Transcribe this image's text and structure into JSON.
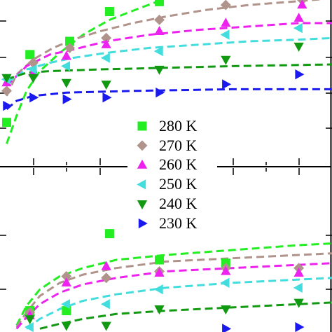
{
  "chart_data": [
    {
      "type": "scatter",
      "panel": "top",
      "title": "",
      "xlabel": "",
      "ylabel": "",
      "xlim": [
        0,
        1
      ],
      "ylim": [
        0,
        1
      ],
      "grid": false,
      "legend_placement": "center",
      "series": [
        {
          "name": "280 K",
          "color": "#22ee22",
          "marker": "square",
          "points": [
            [
              0.02,
              0.26
            ],
            [
              0.09,
              0.67
            ],
            [
              0.21,
              0.75
            ],
            [
              0.33,
              0.93
            ],
            [
              0.48,
              0.99
            ]
          ],
          "fit": [
            [
              0.02,
              0.13
            ],
            [
              0.05,
              0.3
            ],
            [
              0.08,
              0.45
            ],
            [
              0.12,
              0.57
            ],
            [
              0.18,
              0.68
            ],
            [
              0.25,
              0.79
            ],
            [
              0.33,
              0.88
            ],
            [
              0.42,
              0.95
            ],
            [
              0.5,
              1.01
            ]
          ]
        },
        {
          "name": "270 K",
          "color": "#b0948c",
          "marker": "diamond",
          "points": [
            [
              0.02,
              0.45
            ],
            [
              0.1,
              0.62
            ],
            [
              0.21,
              0.71
            ],
            [
              0.32,
              0.77
            ],
            [
              0.48,
              0.88
            ],
            [
              0.68,
              0.97
            ],
            [
              0.91,
              1.0
            ]
          ],
          "fit": [
            [
              0.02,
              0.42
            ],
            [
              0.05,
              0.55
            ],
            [
              0.1,
              0.64
            ],
            [
              0.16,
              0.71
            ],
            [
              0.22,
              0.76
            ],
            [
              0.3,
              0.81
            ],
            [
              0.4,
              0.86
            ],
            [
              0.5,
              0.9
            ],
            [
              0.62,
              0.94
            ],
            [
              0.75,
              0.97
            ],
            [
              0.88,
              0.99
            ],
            [
              1.0,
              1.01
            ]
          ]
        },
        {
          "name": "260 K",
          "color": "#ee22ee",
          "marker": "triangle-up",
          "points": [
            [
              0.02,
              0.5
            ],
            [
              0.1,
              0.56
            ],
            [
              0.2,
              0.66
            ],
            [
              0.32,
              0.73
            ],
            [
              0.48,
              0.81
            ],
            [
              0.68,
              0.86
            ],
            [
              0.9,
              0.89
            ],
            [
              0.91,
              0.97
            ]
          ],
          "fit": [
            [
              0.02,
              0.48
            ],
            [
              0.08,
              0.6
            ],
            [
              0.15,
              0.67
            ],
            [
              0.22,
              0.7
            ],
            [
              0.32,
              0.75
            ],
            [
              0.45,
              0.79
            ],
            [
              0.6,
              0.82
            ],
            [
              0.75,
              0.84
            ],
            [
              0.9,
              0.86
            ],
            [
              1.0,
              0.86
            ]
          ]
        },
        {
          "name": "250 K",
          "color": "#44dddd",
          "marker": "triangle-left",
          "points": [
            [
              0.02,
              0.52
            ],
            [
              0.1,
              0.58
            ],
            [
              0.2,
              0.6
            ],
            [
              0.32,
              0.65
            ],
            [
              0.48,
              0.69
            ],
            [
              0.68,
              0.79
            ],
            [
              0.9,
              0.83
            ]
          ],
          "fit": [
            [
              0.02,
              0.5
            ],
            [
              0.08,
              0.58
            ],
            [
              0.15,
              0.62
            ],
            [
              0.22,
              0.65
            ],
            [
              0.32,
              0.68
            ],
            [
              0.45,
              0.71
            ],
            [
              0.6,
              0.73
            ],
            [
              0.75,
              0.75
            ],
            [
              0.9,
              0.76
            ],
            [
              1.0,
              0.77
            ]
          ]
        },
        {
          "name": "240 K",
          "color": "#119911",
          "marker": "triangle-down",
          "points": [
            [
              0.02,
              0.53
            ],
            [
              0.1,
              0.53
            ],
            [
              0.2,
              0.5
            ],
            [
              0.32,
              0.49
            ],
            [
              0.48,
              0.58
            ],
            [
              0.68,
              0.64
            ],
            [
              0.9,
              0.72
            ]
          ],
          "fit": [
            [
              0.02,
              0.52
            ],
            [
              0.08,
              0.56
            ],
            [
              0.15,
              0.57
            ],
            [
              0.3,
              0.58
            ],
            [
              0.5,
              0.59
            ],
            [
              0.7,
              0.6
            ],
            [
              1.0,
              0.61
            ]
          ]
        },
        {
          "name": "230 K",
          "color": "#1a1aee",
          "marker": "triangle-right",
          "points": [
            [
              0.02,
              0.36
            ],
            [
              0.1,
              0.41
            ],
            [
              0.2,
              0.4
            ],
            [
              0.32,
              0.41
            ],
            [
              0.48,
              0.44
            ],
            [
              0.68,
              0.49
            ],
            [
              0.9,
              0.55
            ]
          ],
          "fit": [
            [
              0.02,
              0.34
            ],
            [
              0.05,
              0.39
            ],
            [
              0.1,
              0.42
            ],
            [
              0.2,
              0.44
            ],
            [
              0.4,
              0.45
            ],
            [
              0.7,
              0.46
            ],
            [
              1.0,
              0.46
            ]
          ]
        }
      ]
    },
    {
      "type": "scatter",
      "panel": "bottom",
      "title": "",
      "xlabel": "",
      "ylabel": "",
      "xlim": [
        0,
        1
      ],
      "ylim": [
        0,
        1
      ],
      "grid": false,
      "series": [
        {
          "name": "280 K",
          "color": "#22ee22",
          "marker": "square",
          "points": [
            [
              0.09,
              0.13
            ],
            [
              0.2,
              0.13
            ],
            [
              0.33,
              0.6
            ],
            [
              0.48,
              0.44
            ],
            [
              0.68,
              0.42
            ]
          ],
          "fit": [
            [
              0.05,
              0.04
            ],
            [
              0.08,
              0.16
            ],
            [
              0.12,
              0.26
            ],
            [
              0.18,
              0.34
            ],
            [
              0.25,
              0.39
            ],
            [
              0.35,
              0.44
            ],
            [
              0.5,
              0.47
            ],
            [
              0.7,
              0.5
            ],
            [
              0.9,
              0.53
            ],
            [
              1.0,
              0.54
            ]
          ]
        },
        {
          "name": "270 K",
          "color": "#b0948c",
          "marker": "diamond",
          "points": [
            [
              0.09,
              0.12
            ],
            [
              0.2,
              0.34
            ],
            [
              0.32,
              0.33
            ],
            [
              0.48,
              0.37
            ],
            [
              0.68,
              0.39
            ],
            [
              0.9,
              0.39
            ]
          ],
          "fit": [
            [
              0.05,
              0.03
            ],
            [
              0.08,
              0.12
            ],
            [
              0.12,
              0.22
            ],
            [
              0.18,
              0.3
            ],
            [
              0.25,
              0.35
            ],
            [
              0.35,
              0.39
            ],
            [
              0.5,
              0.43
            ],
            [
              0.7,
              0.45
            ],
            [
              0.9,
              0.47
            ],
            [
              1.0,
              0.48
            ]
          ]
        },
        {
          "name": "260 K",
          "color": "#ee22ee",
          "marker": "triangle-up",
          "points": [
            [
              0.09,
              0.1
            ],
            [
              0.2,
              0.3
            ],
            [
              0.32,
              0.4
            ],
            [
              0.48,
              0.36
            ],
            [
              0.68,
              0.37
            ],
            [
              0.9,
              0.36
            ]
          ],
          "fit": [
            [
              0.05,
              0.02
            ],
            [
              0.08,
              0.09
            ],
            [
              0.12,
              0.17
            ],
            [
              0.18,
              0.24
            ],
            [
              0.25,
              0.29
            ],
            [
              0.35,
              0.33
            ],
            [
              0.5,
              0.37
            ],
            [
              0.7,
              0.39
            ],
            [
              0.9,
              0.41
            ],
            [
              1.0,
              0.42
            ]
          ]
        },
        {
          "name": "250 K",
          "color": "#44dddd",
          "marker": "triangle-left",
          "points": [
            [
              0.09,
              0.03
            ],
            [
              0.2,
              0.17
            ],
            [
              0.32,
              0.17
            ],
            [
              0.48,
              0.26
            ],
            [
              0.68,
              0.3
            ],
            [
              0.9,
              0.27
            ]
          ],
          "fit": [
            [
              0.08,
              0.02
            ],
            [
              0.12,
              0.08
            ],
            [
              0.18,
              0.14
            ],
            [
              0.25,
              0.19
            ],
            [
              0.35,
              0.23
            ],
            [
              0.5,
              0.27
            ],
            [
              0.7,
              0.3
            ],
            [
              0.9,
              0.32
            ],
            [
              1.0,
              0.33
            ]
          ]
        },
        {
          "name": "240 K",
          "color": "#119911",
          "marker": "triangle-down",
          "points": [
            [
              0.09,
              0.08
            ],
            [
              0.2,
              0.04
            ],
            [
              0.32,
              0.04
            ],
            [
              0.48,
              0.14
            ],
            [
              0.68,
              0.14
            ],
            [
              0.9,
              0.18
            ]
          ],
          "fit": [
            [
              0.12,
              0.02
            ],
            [
              0.18,
              0.05
            ],
            [
              0.25,
              0.08
            ],
            [
              0.35,
              0.11
            ],
            [
              0.5,
              0.13
            ],
            [
              0.7,
              0.15
            ],
            [
              0.9,
              0.17
            ],
            [
              1.0,
              0.18
            ]
          ]
        },
        {
          "name": "230 K",
          "color": "#1a1aee",
          "marker": "triangle-right",
          "points": [
            [
              0.68,
              0.02
            ],
            [
              0.9,
              0.03
            ]
          ],
          "fit": []
        }
      ]
    }
  ],
  "legend": {
    "entries": [
      "280 K",
      "270 K",
      "260 K",
      "250 K",
      "240 K",
      "230 K"
    ]
  }
}
